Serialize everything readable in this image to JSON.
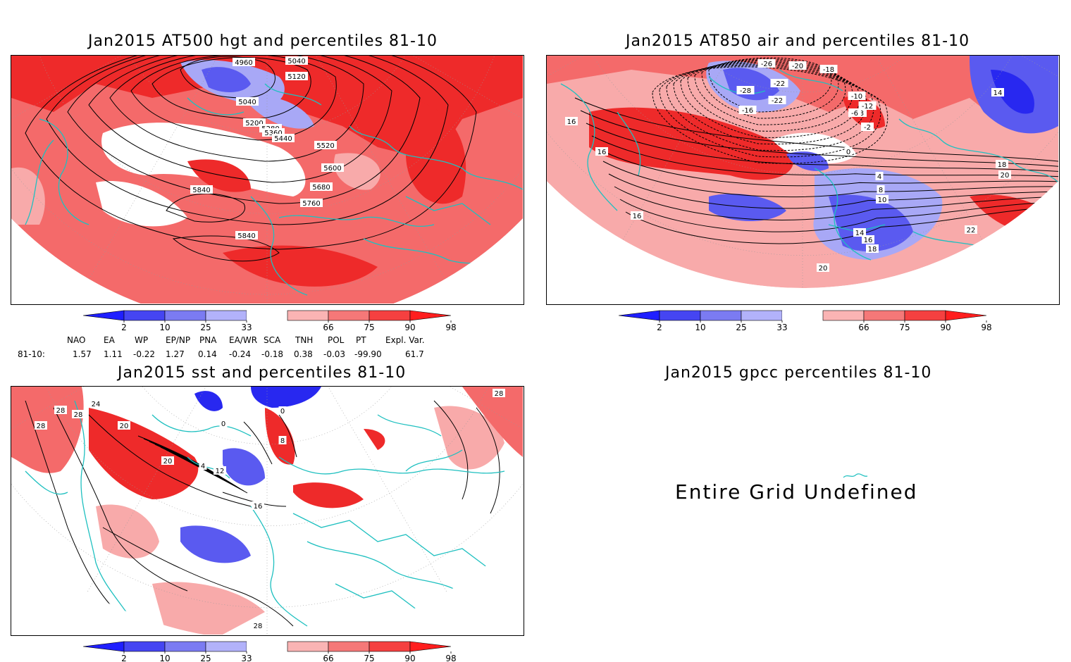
{
  "panels": [
    {
      "title": "Jan2015 AT500 hgt and percentiles 81-10",
      "contour_labels": [
        "4960",
        "5040",
        "5120",
        "5040",
        "5200",
        "5280",
        "5360",
        "5440",
        "5520",
        "5600",
        "5680",
        "5760",
        "5840",
        "5840"
      ]
    },
    {
      "title": "Jan2015 AT850 air and percentiles 81-10",
      "contour_labels": [
        "-26",
        "-22",
        "-20",
        "-18",
        "-28",
        "-22",
        "-16",
        "-10",
        "-12",
        "-8",
        "-6",
        "-2",
        "0",
        "4",
        "8",
        "10",
        "14",
        "16",
        "18",
        "20",
        "22",
        "16",
        "16",
        "16",
        "18",
        "20",
        "14"
      ]
    },
    {
      "title": "Jan2015 sst and percentiles 81-10",
      "contour_labels": [
        "28",
        "24",
        "28",
        "28",
        "20",
        "0",
        "0",
        "4",
        "8",
        "12",
        "16",
        "20",
        "28",
        "28"
      ]
    },
    {
      "title": "Jan2015 gpcc percentiles 81-10",
      "message": "Entire Grid Undefined"
    }
  ],
  "colorbar": {
    "labels": [
      "2",
      "10",
      "25",
      "33",
      "66",
      "75",
      "90",
      "98"
    ],
    "colors": [
      "#1f1fff",
      "#4545f2",
      "#7b7bf2",
      "#b2b2fa",
      "#ffffff",
      "#fab4b4",
      "#f57878",
      "#f54040",
      "#ff1e1e"
    ]
  },
  "indices": {
    "headers": [
      "NAO",
      "EA",
      "WP",
      "EP/NP",
      "PNA",
      "EA/WR",
      "SCA",
      "TNH",
      "POL",
      "PT",
      "Expl. Var."
    ],
    "row_label": "81-10:",
    "values": [
      "1.57",
      "1.11",
      "-0.22",
      "1.27",
      "0.14",
      "-0.24",
      "-0.18",
      "0.38",
      "-0.03",
      "-99.90",
      "61.7"
    ]
  },
  "colors": {
    "frame": "#000000",
    "coast": "#1fc0c0",
    "strong_red": "#ee2a2a",
    "mid_red": "#f46a6a",
    "light_red": "#f8aaaa",
    "strong_blue": "#2828f0",
    "mid_blue": "#5a5af0",
    "light_blue": "#a8a8f6"
  }
}
